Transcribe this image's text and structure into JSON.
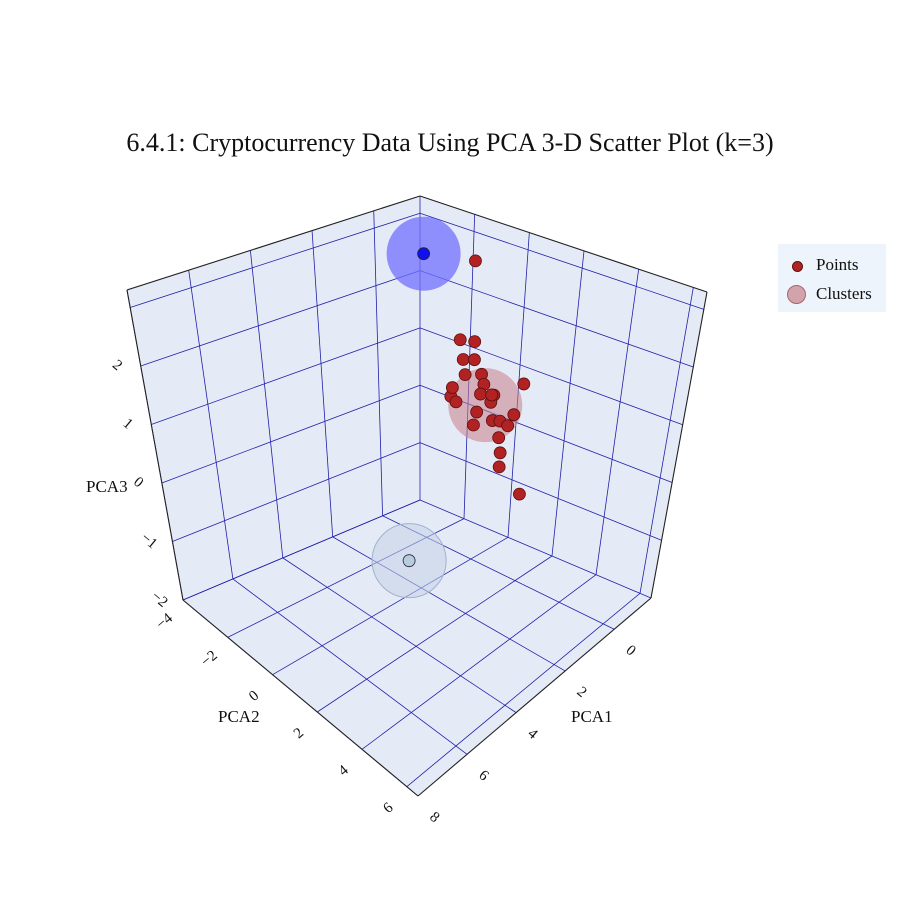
{
  "chart_data": {
    "type": "scatter",
    "title": "6.4.1: Cryptocurrency Data Using PCA 3-D Scatter Plot (k=3)",
    "axes": {
      "x": {
        "label": "PCA1",
        "range": [
          -1.5,
          8
        ],
        "ticks": [
          0,
          2,
          4,
          6,
          8
        ]
      },
      "y": {
        "label": "PCA2",
        "range": [
          -4,
          6.5
        ],
        "ticks": [
          -4,
          -2,
          0,
          2,
          4,
          6
        ]
      },
      "z": {
        "label": "PCA3",
        "range": [
          -2,
          3.3
        ],
        "ticks": [
          -2,
          -1,
          0,
          1,
          2
        ]
      }
    },
    "legend": {
      "placement": "top-right",
      "entries": [
        "Points",
        "Clusters"
      ]
    },
    "colors": {
      "points": "#b22222",
      "points_edge": "#5a1010",
      "clusters": [
        "#c8808a",
        "#7070ff",
        "#c4d2e6"
      ],
      "grid": "#2020aa",
      "pane": "#e5ebf6"
    },
    "series": [
      {
        "name": "Points",
        "points": [
          [
            -0.3,
            -0.6,
            3.0
          ],
          [
            0.5,
            -0.2,
            1.9
          ],
          [
            -0.1,
            -0.3,
            1.7
          ],
          [
            0.1,
            -0.5,
            1.4
          ],
          [
            -0.3,
            -0.5,
            1.3
          ],
          [
            0.2,
            -0.3,
            1.2
          ],
          [
            0.6,
            -0.4,
            0.9
          ],
          [
            0.5,
            -0.3,
            0.8
          ],
          [
            1.1,
            0.2,
            1.3
          ],
          [
            -0.3,
            -0.2,
            1.1
          ],
          [
            -0.4,
            -0.2,
            0.9
          ],
          [
            -0.2,
            -0.1,
            0.8
          ],
          [
            -0.6,
            0.0,
            0.7
          ],
          [
            0.1,
            0.1,
            0.6
          ],
          [
            -0.5,
            0.0,
            0.6
          ],
          [
            -0.8,
            -0.3,
            0.6
          ],
          [
            0.2,
            0.1,
            0.4
          ],
          [
            -0.5,
            0.1,
            0.3
          ],
          [
            -0.6,
            0.3,
            0.3
          ],
          [
            -0.4,
            0.5,
            0.1
          ],
          [
            -1.0,
            0.2,
            0.1
          ],
          [
            -1.3,
            0.1,
            0.2
          ],
          [
            -0.3,
            0.7,
            -0.1
          ],
          [
            -1.5,
            0.2,
            0.7
          ],
          [
            -0.4,
            1.5,
            -0.7
          ],
          [
            -0.2,
            0.8,
            -0.3
          ]
        ],
        "point_colors": [
          0,
          0,
          0,
          0,
          0,
          0,
          0,
          0,
          0,
          0,
          0,
          0,
          0,
          0,
          0,
          0,
          0,
          0,
          0,
          0,
          0,
          0,
          0,
          0,
          0,
          0
        ],
        "extra_points": [
          {
            "coords": [
              -1.0,
              -3.3,
              2.5
            ],
            "color": "#1010ee"
          },
          {
            "coords": [
              6.5,
              4.5,
              1.0
            ],
            "color": "#b8cce0"
          }
        ]
      },
      {
        "name": "Clusters",
        "centers": [
          [
            -0.3,
            0.0,
            0.6
          ],
          [
            -1.0,
            -3.3,
            2.5
          ],
          [
            6.5,
            4.5,
            1.0
          ]
        ]
      }
    ]
  }
}
